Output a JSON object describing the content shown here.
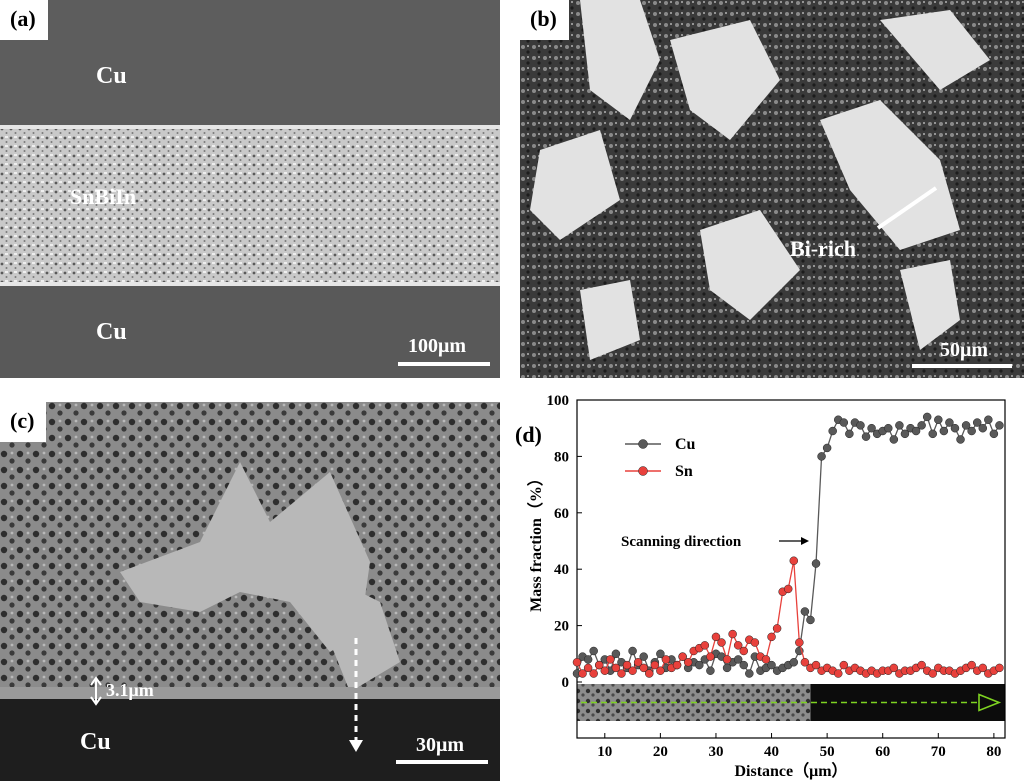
{
  "panels": {
    "a": {
      "tag": "(a)",
      "label_top": "Cu",
      "label_mid": "SnBiIn",
      "label_bottom": "Cu",
      "scale": "100μm"
    },
    "b": {
      "tag": "(b)",
      "annotation": "Bi-rich",
      "scale": "50μm"
    },
    "c": {
      "tag": "(c)",
      "thickness": "3.1μm",
      "label_bottom": "Cu",
      "scale": "30μm"
    },
    "d": {
      "tag": "(d)",
      "annotation": "Scanning direction"
    }
  },
  "chart_data": {
    "type": "line",
    "xlabel": "Distance（μm）",
    "ylabel": "Mass fraction（%）",
    "xlim": [
      5,
      82
    ],
    "ylim": [
      0,
      100
    ],
    "xticks": [
      10,
      20,
      30,
      40,
      50,
      60,
      70,
      80
    ],
    "yticks": [
      0,
      20,
      40,
      60,
      80,
      100
    ],
    "legend_position": "top-left",
    "series": [
      {
        "name": "Cu",
        "color": "#595959",
        "x": [
          5,
          6,
          7,
          8,
          9,
          10,
          11,
          12,
          13,
          14,
          15,
          16,
          17,
          18,
          19,
          20,
          21,
          22,
          23,
          24,
          25,
          26,
          27,
          28,
          29,
          30,
          31,
          32,
          33,
          34,
          35,
          36,
          37,
          38,
          39,
          40,
          41,
          42,
          43,
          44,
          45,
          46,
          47,
          48,
          49,
          50,
          51,
          52,
          53,
          54,
          55,
          56,
          57,
          58,
          59,
          60,
          61,
          62,
          63,
          64,
          65,
          66,
          67,
          68,
          69,
          70,
          71,
          72,
          73,
          74,
          75,
          76,
          77,
          78,
          79,
          80,
          81
        ],
        "y": [
          3,
          9,
          8,
          11,
          6,
          8,
          4,
          10,
          7,
          5,
          11,
          6,
          9,
          4,
          7,
          10,
          5,
          8,
          6,
          9,
          5,
          7,
          6,
          8,
          4,
          10,
          9,
          5,
          7,
          8,
          6,
          3,
          9,
          4,
          5,
          6,
          4,
          5,
          6,
          7,
          11,
          25,
          22,
          42,
          80,
          83,
          89,
          93,
          92,
          88,
          92,
          91,
          87,
          90,
          88,
          89,
          90,
          86,
          91,
          88,
          90,
          89,
          91,
          94,
          88,
          93,
          89,
          92,
          90,
          86,
          91,
          89,
          92,
          90,
          93,
          88,
          91
        ]
      },
      {
        "name": "Sn",
        "color": "#e8413c",
        "x": [
          5,
          6,
          7,
          8,
          9,
          10,
          11,
          12,
          13,
          14,
          15,
          16,
          17,
          18,
          19,
          20,
          21,
          22,
          23,
          24,
          25,
          26,
          27,
          28,
          29,
          30,
          31,
          32,
          33,
          34,
          35,
          36,
          37,
          38,
          39,
          40,
          41,
          42,
          43,
          44,
          45,
          46,
          47,
          48,
          49,
          50,
          51,
          52,
          53,
          54,
          55,
          56,
          57,
          58,
          59,
          60,
          61,
          62,
          63,
          64,
          65,
          66,
          67,
          68,
          69,
          70,
          71,
          72,
          73,
          74,
          75,
          76,
          77,
          78,
          79,
          80,
          81
        ],
        "y": [
          7,
          3,
          5,
          3,
          6,
          4,
          8,
          5,
          3,
          6,
          4,
          7,
          5,
          3,
          6,
          4,
          8,
          5,
          6,
          9,
          7,
          11,
          12,
          13,
          9,
          16,
          14,
          8,
          17,
          13,
          11,
          15,
          14,
          9,
          8,
          16,
          19,
          32,
          33,
          43,
          14,
          7,
          5,
          6,
          4,
          5,
          4,
          3,
          6,
          4,
          5,
          4,
          3,
          4,
          3,
          4,
          4,
          5,
          3,
          4,
          4,
          5,
          6,
          4,
          3,
          5,
          4,
          4,
          3,
          4,
          5,
          6,
          4,
          5,
          3,
          4,
          5
        ]
      }
    ]
  }
}
